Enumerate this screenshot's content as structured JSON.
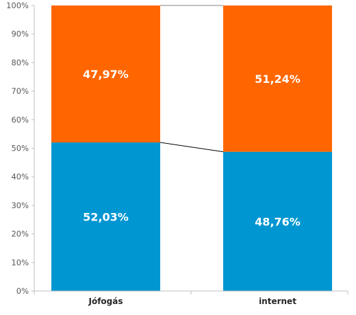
{
  "chart_data": {
    "type": "bar",
    "stacked": true,
    "percent": true,
    "categories": [
      "Jófogás",
      "internet"
    ],
    "series": [
      {
        "values": [
          52.03,
          48.76
        ],
        "labels": [
          "52,03%",
          "48,76%"
        ],
        "color": "#0096D1"
      },
      {
        "values": [
          47.97,
          51.24
        ],
        "labels": [
          "47,97%",
          "51,24%"
        ],
        "color": "#FF6600"
      }
    ],
    "yticks": [
      "0%",
      "10%",
      "20%",
      "30%",
      "40%",
      "50%",
      "60%",
      "70%",
      "80%",
      "90%",
      "100%"
    ],
    "ylim": [
      0,
      100
    ],
    "grid": false,
    "series_lines": true,
    "legend": "none"
  }
}
